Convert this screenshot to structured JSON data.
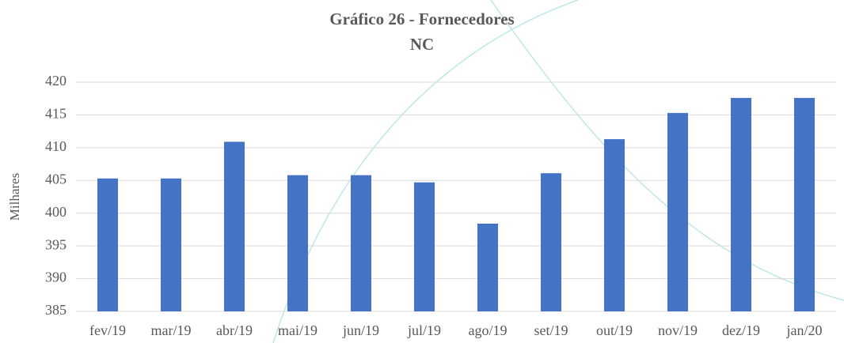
{
  "chart_data": {
    "type": "bar",
    "title": "Gráfico 26 - Fornecedores",
    "subtitle": "NC",
    "y_axis_label": "Milhares",
    "categories": [
      "fev/19",
      "mar/19",
      "abr/19",
      "mai/19",
      "jun/19",
      "jul/19",
      "ago/19",
      "set/19",
      "out/19",
      "nov/19",
      "dez/19",
      "jan/20"
    ],
    "values": [
      405.3,
      405.3,
      410.9,
      405.8,
      405.8,
      404.7,
      398.4,
      406.1,
      411.3,
      415.3,
      417.6,
      417.6
    ],
    "color": "#4472c4",
    "ylim": [
      385,
      420
    ],
    "yticks": [
      385,
      390,
      395,
      400,
      405,
      410,
      415,
      420
    ],
    "grid": true
  }
}
